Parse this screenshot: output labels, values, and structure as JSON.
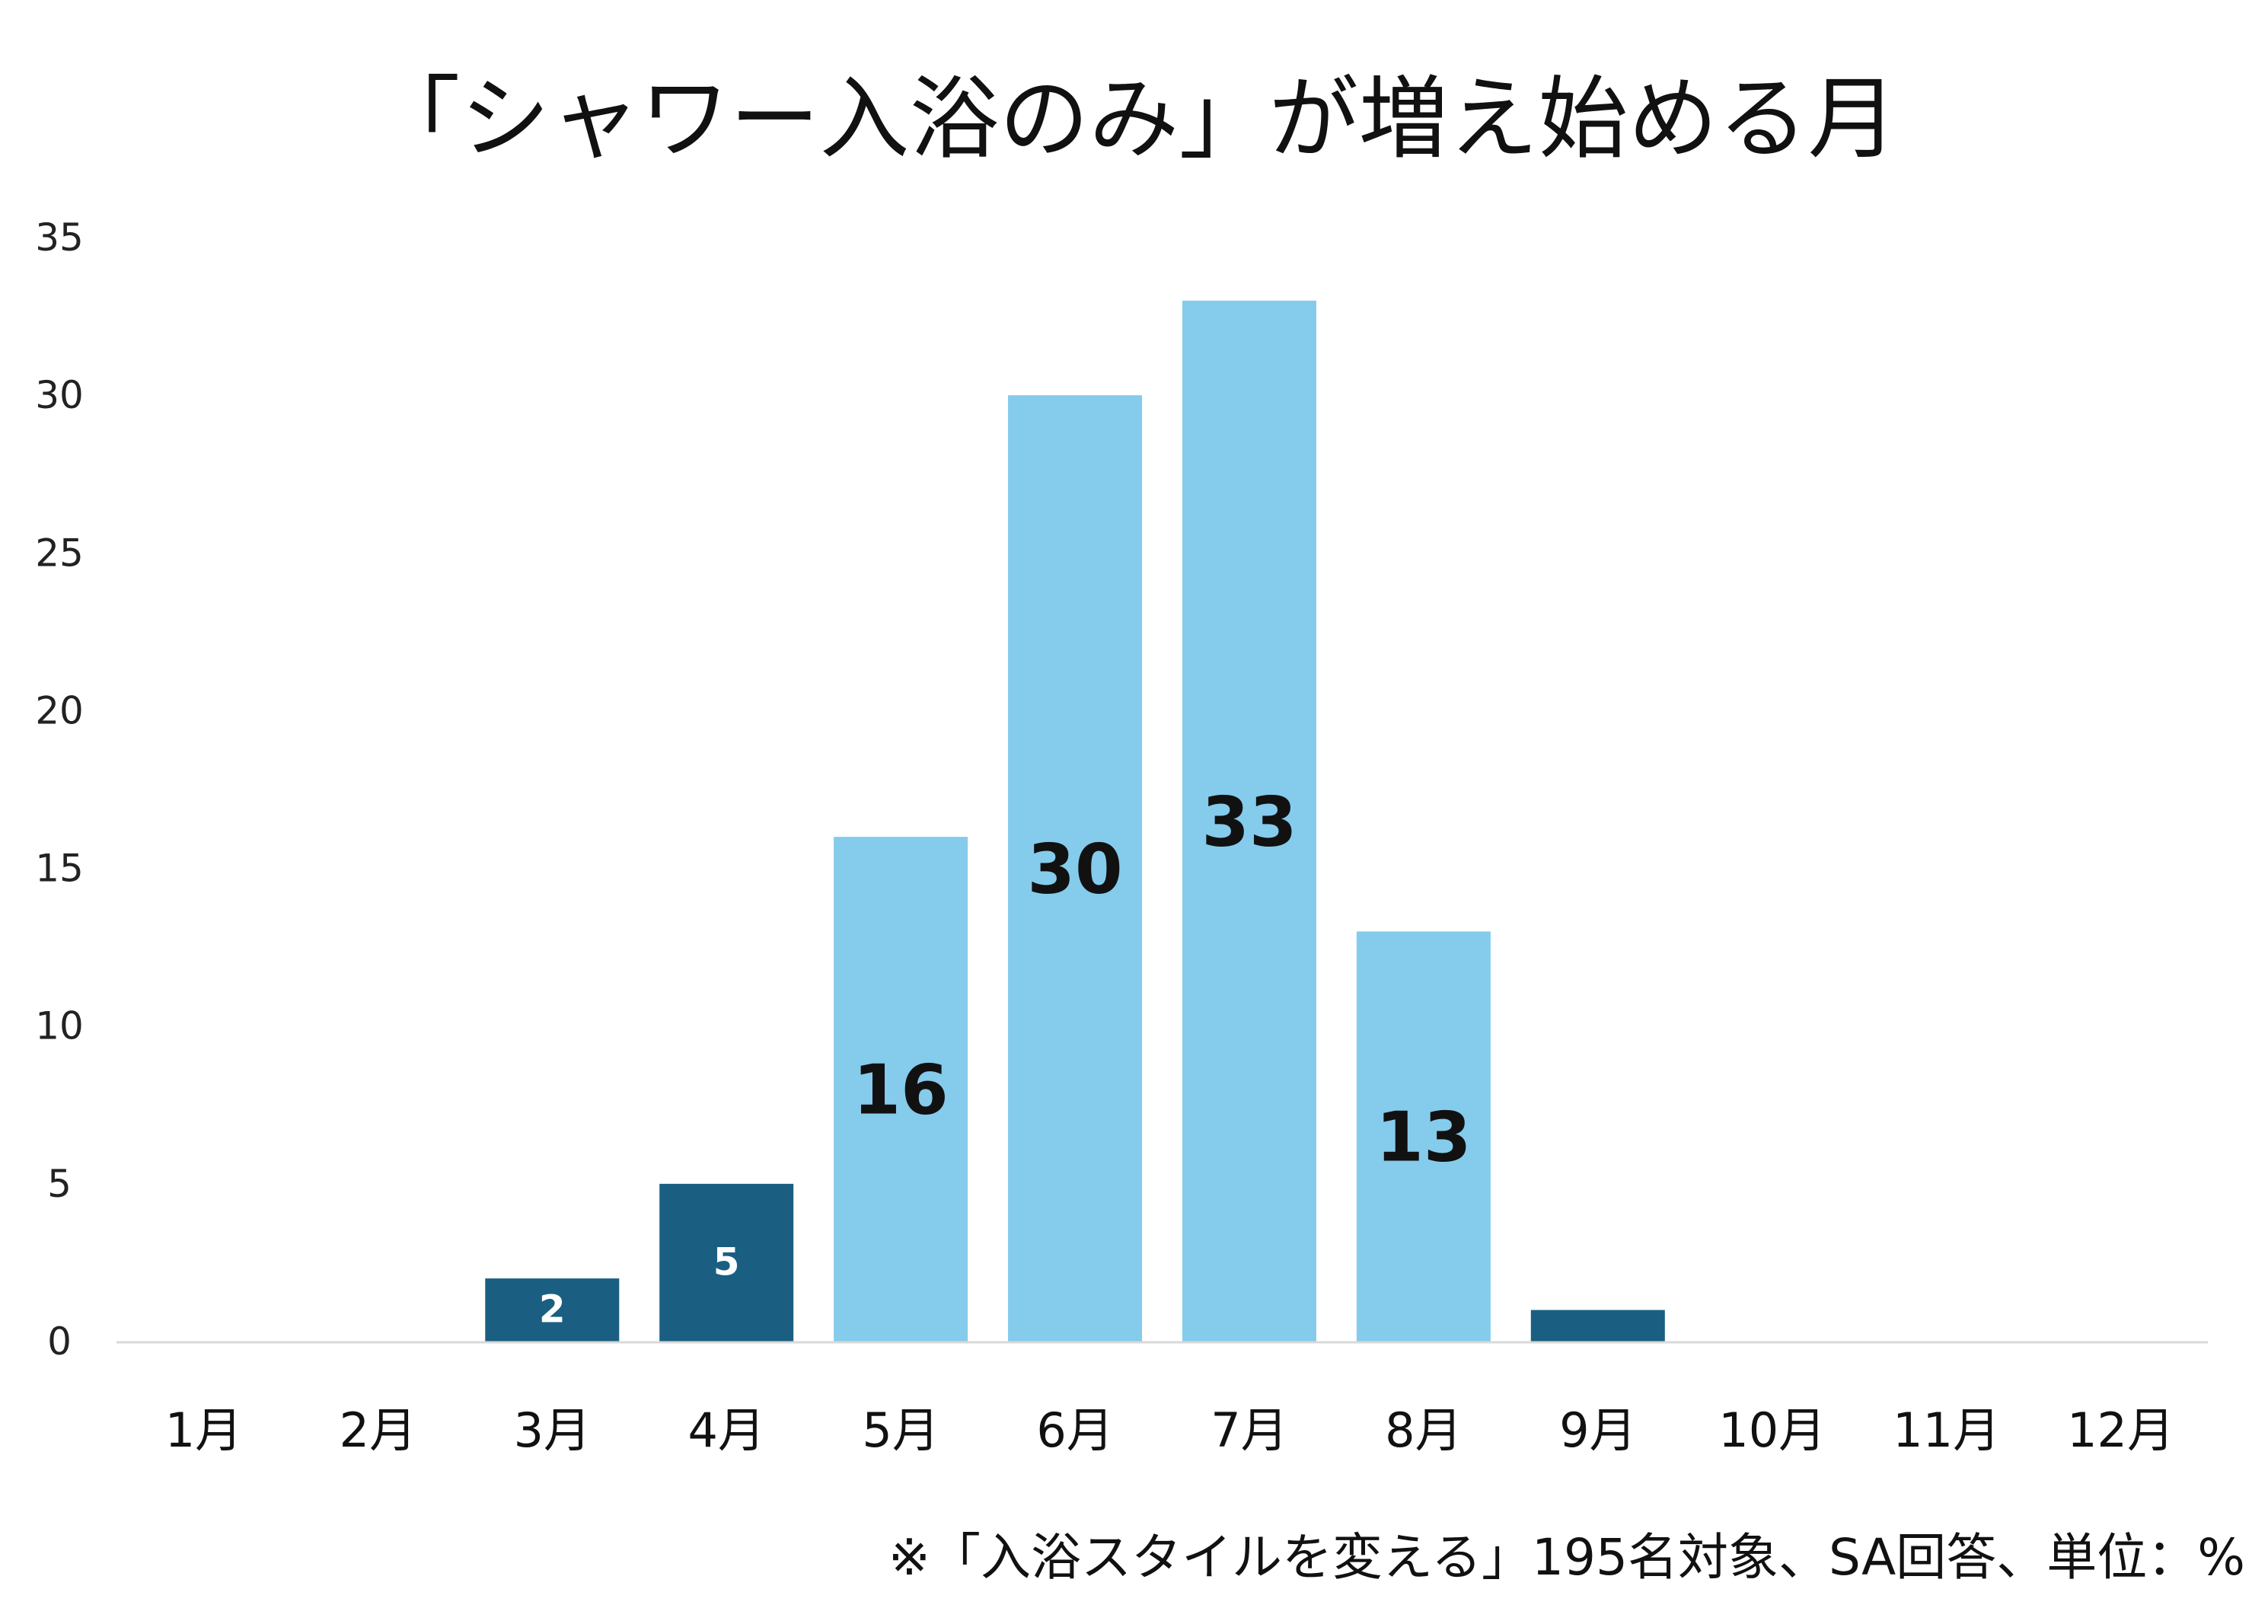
{
  "title": "「シャワー入浴のみ」が増え始める月",
  "footnote": "※「入浴スタイルを変える」195名対象、SA回答、単位：%",
  "colors": {
    "dark_bar": "#1a5f82",
    "light_bar": "#85cbeb",
    "dark_label": "#ffffff",
    "light_label": "#111111",
    "axis": "#d9d9d9"
  },
  "chart_data": {
    "type": "bar",
    "categories": [
      "1月",
      "2月",
      "3月",
      "4月",
      "5月",
      "6月",
      "7月",
      "8月",
      "9月",
      "10月",
      "11月",
      "12月"
    ],
    "values": [
      0,
      0,
      2,
      5,
      16,
      30,
      33,
      13,
      1,
      0,
      0,
      0
    ],
    "data_labels": [
      "",
      "",
      "2",
      "5",
      "16",
      "30",
      "33",
      "13",
      "",
      "",
      "",
      ""
    ],
    "bar_color_group": [
      "dark",
      "dark",
      "dark",
      "dark",
      "light",
      "light",
      "light",
      "light",
      "dark",
      "dark",
      "dark",
      "dark"
    ],
    "ylim": [
      0,
      35
    ],
    "yticks": [
      0,
      5,
      10,
      15,
      20,
      25,
      30,
      35
    ],
    "grid": false,
    "legend": "none",
    "xlabel": "",
    "ylabel": ""
  }
}
